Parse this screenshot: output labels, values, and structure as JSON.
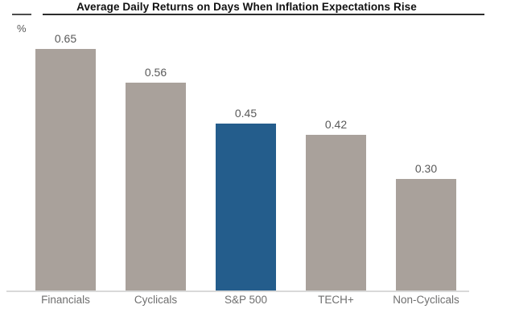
{
  "chart_data": {
    "type": "bar",
    "title": "Average Daily Returns on Days When Inflation Expectations Rise",
    "ylabel": "%",
    "xlabel": "",
    "categories": [
      "Financials",
      "Cyclicals",
      "S&P 500",
      "TECH+",
      "Non-Cyclicals"
    ],
    "values": [
      0.65,
      0.56,
      0.45,
      0.42,
      0.3
    ],
    "value_labels": [
      "0.65",
      "0.56",
      "0.45",
      "0.42",
      "0.30"
    ],
    "ylim": [
      0,
      0.78
    ],
    "grid": false,
    "legend": "none",
    "highlight_category": "S&P 500",
    "bar_colors": [
      "#a9a19b",
      "#a9a19b",
      "#245d8c",
      "#a9a19b",
      "#a9a19b"
    ]
  },
  "colors": {
    "bar_default": "#a9a19b",
    "bar_highlight": "#245d8c",
    "title_text": "#111111",
    "title_rule": "#2b2b2b",
    "value_text": "#595959",
    "category_text": "#6f6f6f",
    "axis_line": "#d9d9d9"
  }
}
